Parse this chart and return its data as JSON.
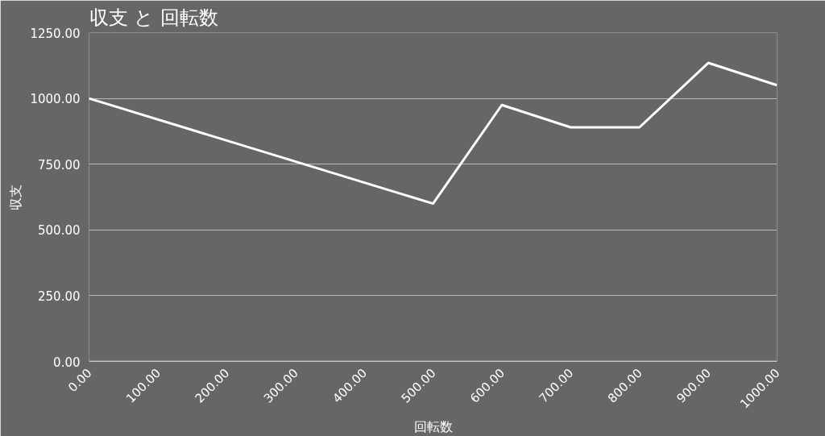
{
  "chart_data": {
    "type": "line",
    "title": "収支 と 回転数",
    "xlabel": "回転数",
    "ylabel": "収支",
    "x": [
      0,
      500,
      600,
      700,
      800,
      900,
      1000
    ],
    "series": [
      {
        "color": "#ffffff",
        "values": [
          1000,
          600,
          975,
          890,
          890,
          1135,
          1050
        ]
      }
    ],
    "xlim": [
      0,
      1000
    ],
    "xticks": [
      {
        "value": 0,
        "label": "0.00"
      },
      {
        "value": 100,
        "label": "100.00"
      },
      {
        "value": 200,
        "label": "200.00"
      },
      {
        "value": 300,
        "label": "300.00"
      },
      {
        "value": 400,
        "label": "400.00"
      },
      {
        "value": 500,
        "label": "500.00"
      },
      {
        "value": 600,
        "label": "600.00"
      },
      {
        "value": 700,
        "label": "700.00"
      },
      {
        "value": 800,
        "label": "800.00"
      },
      {
        "value": 900,
        "label": "900.00"
      },
      {
        "value": 1000,
        "label": "1000.00"
      }
    ],
    "ylim": [
      0,
      1250
    ],
    "yticks": [
      {
        "value": 0,
        "label": "0.00"
      },
      {
        "value": 250,
        "label": "250.00"
      },
      {
        "value": 500,
        "label": "500.00"
      },
      {
        "value": 750,
        "label": "750.00"
      },
      {
        "value": 1000,
        "label": "1000.00"
      },
      {
        "value": 1250,
        "label": "1250.00"
      }
    ],
    "grid": "y",
    "marker": "none",
    "line_style": "solid"
  }
}
